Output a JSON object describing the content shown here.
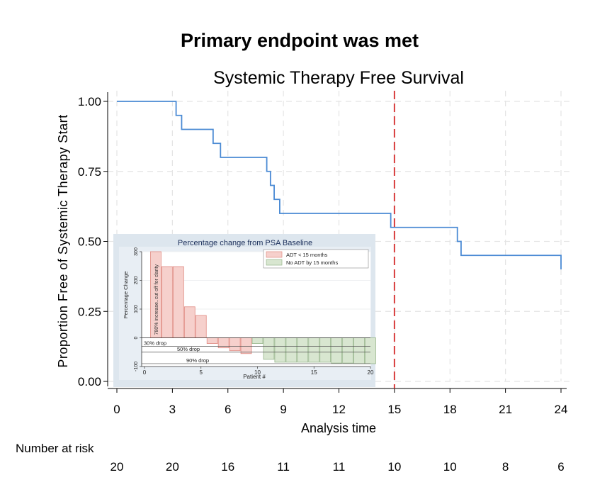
{
  "slide_title": "Primary endpoint was met",
  "chart_data": [
    {
      "type": "line",
      "subtype": "kaplan-meier-step",
      "title": "Systemic Therapy Free Survival",
      "xlabel": "Analysis time",
      "ylabel": "Proportion Free of Systemic Therapy Start",
      "xlim": [
        0,
        24
      ],
      "ylim": [
        0,
        1
      ],
      "xticks": [
        0,
        3,
        6,
        9,
        12,
        15,
        18,
        21,
        24
      ],
      "yticks": [
        "0.00",
        "0.25",
        "0.50",
        "0.75",
        "1.00"
      ],
      "grid": true,
      "series": [
        {
          "color": "#4a8ad4",
          "x": [
            0,
            3.2,
            3.5,
            5.2,
            5.6,
            8.1,
            8.3,
            8.5,
            8.8,
            14.8,
            18.4,
            18.6,
            24
          ],
          "y": [
            1.0,
            0.95,
            0.9,
            0.85,
            0.8,
            0.75,
            0.7,
            0.65,
            0.6,
            0.55,
            0.5,
            0.45,
            0.4
          ]
        }
      ],
      "reference_line": {
        "x": 15,
        "color": "#d83a3a",
        "style": "dashed"
      },
      "risk_table": {
        "label": "Number at risk",
        "times": [
          0,
          3,
          6,
          9,
          12,
          15,
          18,
          21,
          24
        ],
        "values": [
          20,
          20,
          16,
          11,
          11,
          10,
          10,
          8,
          6
        ]
      }
    },
    {
      "type": "bar",
      "subtype": "waterfall",
      "title": "Percentage change from PSA Baseline",
      "xlabel": "Patient #",
      "ylabel": "Percentage Change",
      "xticks": [
        0,
        5,
        10,
        15,
        20
      ],
      "yticks": [
        -100,
        0,
        100,
        200,
        300
      ],
      "ylim": [
        -100,
        300
      ],
      "bar_annotation": "780% increase..cut off for clarity",
      "series": [
        {
          "name": "ADT < 15 months",
          "color": "#f6d0cc",
          "edge": "#e08a82",
          "x": [
            1,
            2,
            3,
            4,
            5,
            6,
            7,
            8,
            9
          ],
          "values": [
            300,
            248,
            248,
            108,
            78,
            -20,
            -35,
            -45,
            -55
          ]
        },
        {
          "name": "No ADT by 15 months",
          "color": "#d8e6d0",
          "edge": "#98b68c",
          "x": [
            10,
            11,
            12,
            13,
            14,
            15,
            16,
            17,
            18,
            19,
            20
          ],
          "values": [
            -20,
            -75,
            -85,
            -85,
            -85,
            -85,
            -85,
            -88,
            -88,
            -90,
            -90
          ]
        }
      ],
      "reference_lines": [
        {
          "label": "30% drop",
          "y": -30
        },
        {
          "label": "50% drop",
          "y": -50
        },
        {
          "label": "90% drop",
          "y": -90
        }
      ],
      "legend": "top-right"
    }
  ]
}
